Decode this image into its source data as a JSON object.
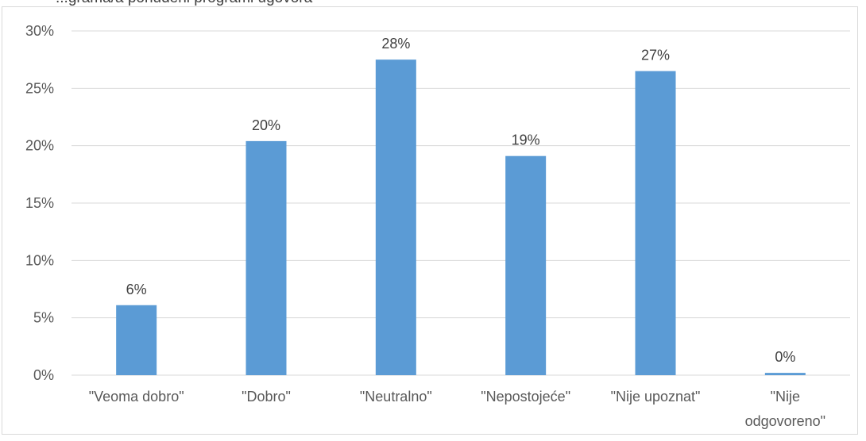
{
  "chart_data": {
    "type": "bar",
    "title": "...grama/a ponuđeni programi ugovora",
    "categories": [
      "\"Veoma dobro\"",
      "\"Dobro\"",
      "\"Neutralno\"",
      "\"Nepostojeće\"",
      "\"Nije upoznat\"",
      "\"Nije odgovoreno\""
    ],
    "category_lines": [
      [
        "\"Veoma dobro\""
      ],
      [
        "\"Dobro\""
      ],
      [
        "\"Neutralno\""
      ],
      [
        "\"Nepostojeće\""
      ],
      [
        "\"Nije upoznat\""
      ],
      [
        "\"Nije",
        "odgovoreno\""
      ]
    ],
    "values": [
      6.1,
      20.4,
      27.5,
      19.1,
      26.5,
      0.2
    ],
    "data_labels": [
      "6%",
      "20%",
      "28%",
      "19%",
      "27%",
      "0%"
    ],
    "yticks": [
      "0%",
      "5%",
      "10%",
      "15%",
      "20%",
      "25%",
      "30%"
    ],
    "ylim": [
      0,
      30
    ],
    "grid": true,
    "bar_color": "#5b9bd5",
    "gridline_color": "#d9d9d9"
  }
}
